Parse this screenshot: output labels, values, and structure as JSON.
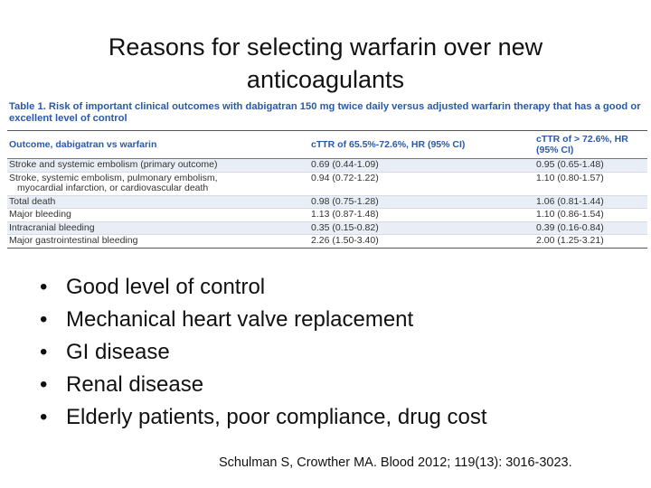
{
  "title_line1": "Reasons for selecting warfarin over new",
  "title_line2": "anticoagulants",
  "table": {
    "caption_line1": "Table 1. Risk of important clinical outcomes with dabigatran 150 mg twice daily versus adjusted warfarin therapy that has a good or",
    "caption_line2": "excellent level of control",
    "headers": [
      "Outcome, dabigatran vs warfarin",
      "cTTR of 65.5%-72.6%, HR (95% CI)",
      "cTTR of > 72.6%, HR (95% CI)"
    ],
    "rows": [
      {
        "outcome": "Stroke and systemic embolism (primary outcome)",
        "outcome2": "",
        "mid": "0.69 (0.44-1.09)",
        "high": "0.95 (0.65-1.48)"
      },
      {
        "outcome": "Stroke, systemic embolism, pulmonary embolism,",
        "outcome2": "myocardial infarction, or cardiovascular death",
        "mid": "0.94 (0.72-1.22)",
        "high": "1.10 (0.80-1.57)"
      },
      {
        "outcome": "Total death",
        "outcome2": "",
        "mid": "0.98 (0.75-1.28)",
        "high": "1.06 (0.81-1.44)"
      },
      {
        "outcome": "Major bleeding",
        "outcome2": "",
        "mid": "1.13 (0.87-1.48)",
        "high": "1.10 (0.86-1.54)"
      },
      {
        "outcome": "Intracranial bleeding",
        "outcome2": "",
        "mid": "0.35 (0.15-0.82)",
        "high": "0.39 (0.16-0.84)"
      },
      {
        "outcome": "Major gastrointestinal bleeding",
        "outcome2": "",
        "mid": "2.26 (1.50-3.40)",
        "high": "2.00 (1.25-3.21)"
      }
    ]
  },
  "bullet_glyph": "•",
  "bullets": [
    "Good level of control",
    "Mechanical heart valve replacement",
    "GI disease",
    "Renal disease",
    "Elderly patients, poor compliance, drug cost"
  ],
  "citation": "Schulman S, Crowther MA. Blood 2012; 119(13): 3016-3023."
}
